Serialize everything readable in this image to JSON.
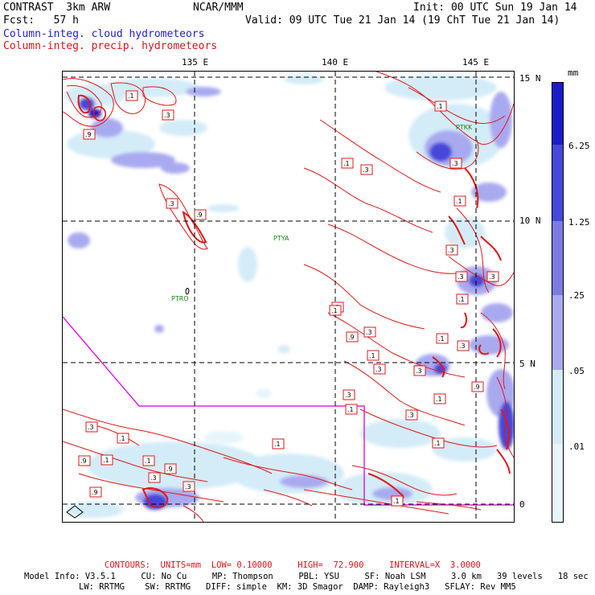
{
  "header": {
    "model": "CONTRAST",
    "model_detail": "3km ARW",
    "org": "NCAR/MMM",
    "init": "Init: 00 UTC Sun 19 Jan 14",
    "fcst_label": "Fcst:",
    "fcst_value": "57 h",
    "valid": "Valid: 09 UTC Tue 21 Jan 14 (19 ChT Tue 21 Jan 14)",
    "field_cloud": "Column-integ. cloud hydrometeors",
    "field_precip": "Column-integ. precip. hydrometeors"
  },
  "map": {
    "lon_labels": [
      "135 E",
      "140 E",
      "145 E"
    ],
    "lat_labels": [
      "15 N",
      "10 N",
      "5 N",
      "0"
    ],
    "stations": [
      "PTYA",
      "PTRO",
      "PTKK"
    ],
    "contour_labels": [
      ".1",
      ".3",
      ".9",
      ".1",
      ".3",
      ".1",
      ".3",
      ".1",
      ".3",
      ".9",
      ".3",
      ".3",
      ".1",
      ".9",
      ".3",
      ".3",
      ".3",
      ".9",
      ".1",
      ".1",
      ".3",
      ".1",
      ".1",
      ".3",
      ".9",
      ".1",
      ".3",
      ".1",
      ".1",
      ".9",
      ".1",
      ".3",
      ".1",
      ".3",
      ".1",
      ".9",
      ".3",
      ".1",
      ".3",
      ".1"
    ]
  },
  "colorbar": {
    "unit": "mm",
    "labels": [
      "6.25",
      "1.25",
      ".25",
      ".05",
      ".01"
    ],
    "colors": [
      "#1c1cc8",
      "#4747d9",
      "#7b7be6",
      "#a9a9f0",
      "#d3ecf8",
      "#e7f5fb",
      "#ffffff"
    ]
  },
  "footer": {
    "contours": "CONTOURS:  UNITS=mm  LOW= 0.10000     HIGH=  72.900     INTERVAL=X  3.0000",
    "model_info_1": "Model Info: V3.5.1     CU: No Cu     MP: Thompson     PBL: YSU     SF: Noah LSM     3.0 km   39 levels   18 sec",
    "model_info_2": "LW: RRTMG    SW: RRTMG   DIFF: simple  KM: 3D Smagor  DAMP: Rayleigh3   SFLAY: Rev MM5"
  },
  "colors": {
    "contour": "#e01818",
    "boundary": "#e020e0",
    "grid": "#000000"
  }
}
